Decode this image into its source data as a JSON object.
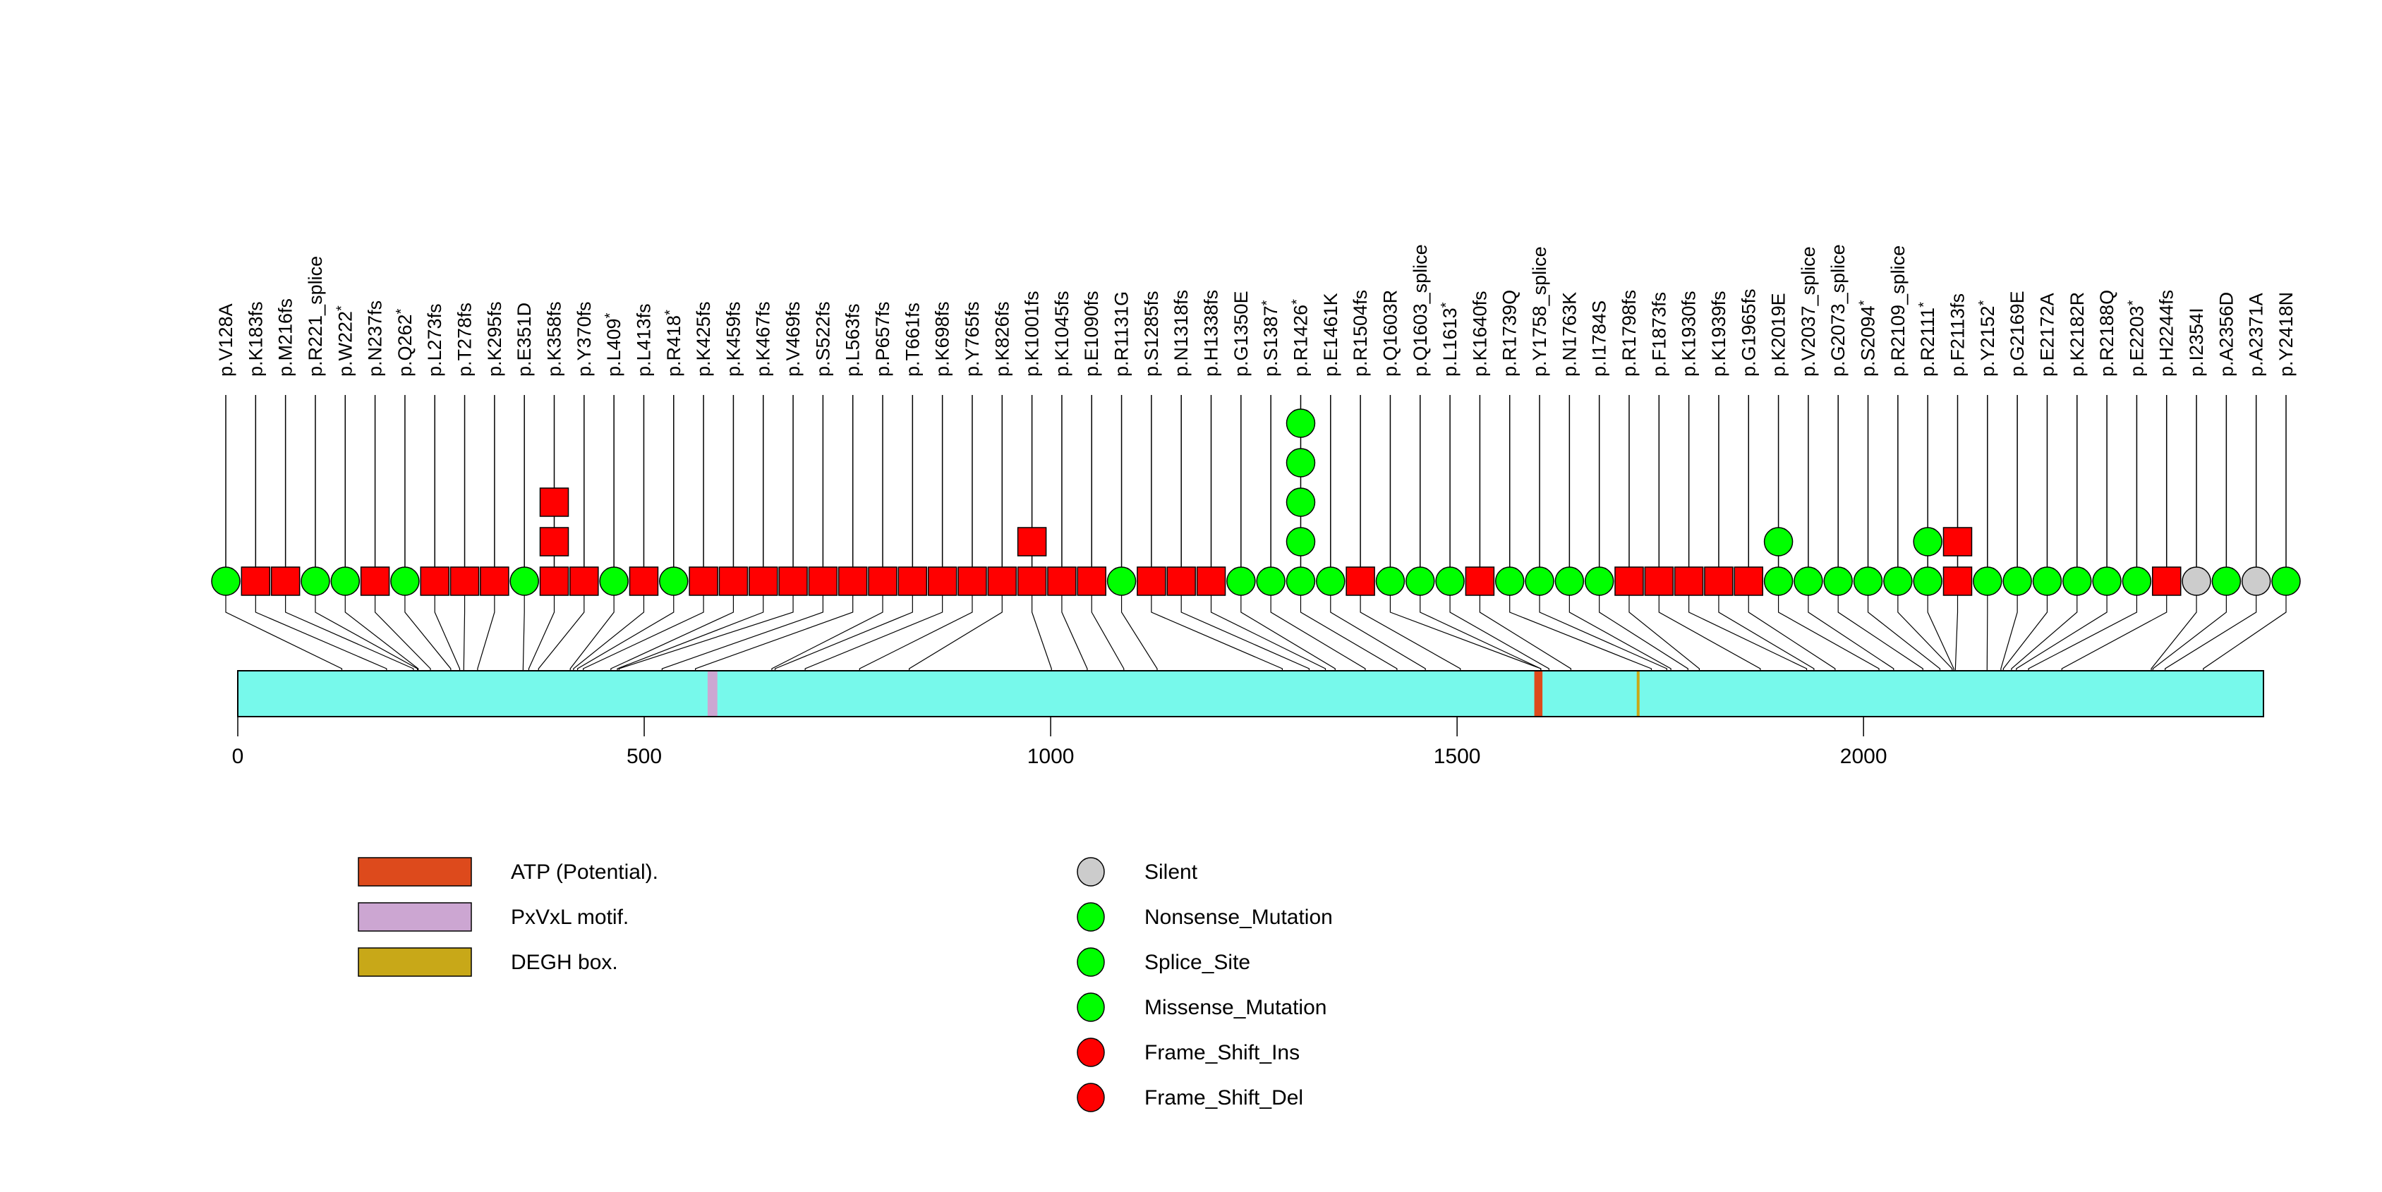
{
  "chart_data": {
    "type": "lollipop",
    "title": "",
    "xlabel": "",
    "ylabel": "",
    "protein_length": 2492,
    "x_range": [
      0,
      2492
    ],
    "x_ticks": [
      0,
      500,
      1000,
      1500,
      2000
    ],
    "colors": {
      "protein_bar": "#77F9EB",
      "Silent": "#CCCCCC",
      "Nonsense_Mutation": "#00FF00",
      "Splice_Site": "#00FF00",
      "Missense_Mutation": "#00FF00",
      "Frame_Shift_Ins": "#FF0000",
      "Frame_Shift_Del": "#FF0000",
      "ATP (Potential).": "#DD4A1C",
      "PxVxL motif.": "#CCA6D2",
      "DEGH box.": "#C8A818"
    },
    "domains": [
      {
        "name": "PxVxL motif.",
        "start": 578,
        "end": 590
      },
      {
        "name": "ATP (Potential).",
        "start": 1595,
        "end": 1605
      },
      {
        "name": "DEGH box.",
        "start": 1721,
        "end": 1724
      }
    ],
    "domain_legend": [
      {
        "label": "ATP (Potential).",
        "color": "#DD4A1C"
      },
      {
        "label": "PxVxL motif.",
        "color": "#CCA6D2"
      },
      {
        "label": "DEGH box.",
        "color": "#C8A818"
      }
    ],
    "mutation_legend": [
      {
        "label": "Silent",
        "color": "#CCCCCC"
      },
      {
        "label": "Nonsense_Mutation",
        "color": "#00FF00"
      },
      {
        "label": "Splice_Site",
        "color": "#00FF00"
      },
      {
        "label": "Missense_Mutation",
        "color": "#00FF00"
      },
      {
        "label": "Frame_Shift_Ins",
        "color": "#FF0000"
      },
      {
        "label": "Frame_Shift_Del",
        "color": "#FF0000"
      }
    ],
    "mutations": [
      {
        "label": "p.V128A",
        "pos": 128,
        "class": "point",
        "count": 1
      },
      {
        "label": "p.K183fs",
        "pos": 183,
        "class": "fs",
        "count": 1
      },
      {
        "label": "p.M216fs",
        "pos": 216,
        "class": "fs",
        "count": 1
      },
      {
        "label": "p.R221_splice",
        "pos": 221,
        "class": "point",
        "count": 1
      },
      {
        "label": "p.W222*",
        "pos": 222,
        "class": "point",
        "count": 1
      },
      {
        "label": "p.N237fs",
        "pos": 237,
        "class": "fs",
        "count": 1
      },
      {
        "label": "p.Q262*",
        "pos": 262,
        "class": "point",
        "count": 1
      },
      {
        "label": "p.L273fs",
        "pos": 273,
        "class": "fs",
        "count": 1
      },
      {
        "label": "p.T278fs",
        "pos": 278,
        "class": "fs",
        "count": 1
      },
      {
        "label": "p.K295fs",
        "pos": 295,
        "class": "fs",
        "count": 1
      },
      {
        "label": "p.E351D",
        "pos": 351,
        "class": "point",
        "count": 1
      },
      {
        "label": "p.K358fs",
        "pos": 358,
        "class": "fs",
        "count": 3
      },
      {
        "label": "p.Y370fs",
        "pos": 370,
        "class": "fs",
        "count": 1
      },
      {
        "label": "p.L409*",
        "pos": 409,
        "class": "point",
        "count": 1
      },
      {
        "label": "p.L413fs",
        "pos": 413,
        "class": "fs",
        "count": 1
      },
      {
        "label": "p.R418*",
        "pos": 418,
        "class": "point",
        "count": 1
      },
      {
        "label": "p.K425fs",
        "pos": 425,
        "class": "fs",
        "count": 1
      },
      {
        "label": "p.K459fs",
        "pos": 459,
        "class": "fs",
        "count": 1
      },
      {
        "label": "p.K467fs",
        "pos": 467,
        "class": "fs",
        "count": 1
      },
      {
        "label": "p.V469fs",
        "pos": 469,
        "class": "fs",
        "count": 1
      },
      {
        "label": "p.S522fs",
        "pos": 522,
        "class": "fs",
        "count": 1
      },
      {
        "label": "p.L563fs",
        "pos": 563,
        "class": "fs",
        "count": 1
      },
      {
        "label": "p.P657fs",
        "pos": 657,
        "class": "fs",
        "count": 1
      },
      {
        "label": "p.T661fs",
        "pos": 661,
        "class": "fs",
        "count": 1
      },
      {
        "label": "p.K698fs",
        "pos": 698,
        "class": "fs",
        "count": 1
      },
      {
        "label": "p.Y765fs",
        "pos": 765,
        "class": "fs",
        "count": 1
      },
      {
        "label": "p.K826fs",
        "pos": 826,
        "class": "fs",
        "count": 1
      },
      {
        "label": "p.K1001fs",
        "pos": 1001,
        "class": "fs",
        "count": 2
      },
      {
        "label": "p.K1045fs",
        "pos": 1045,
        "class": "fs",
        "count": 1
      },
      {
        "label": "p.E1090fs",
        "pos": 1090,
        "class": "fs",
        "count": 1
      },
      {
        "label": "p.R1131G",
        "pos": 1131,
        "class": "point",
        "count": 1
      },
      {
        "label": "p.S1285fs",
        "pos": 1285,
        "class": "fs",
        "count": 1
      },
      {
        "label": "p.N1318fs",
        "pos": 1318,
        "class": "fs",
        "count": 1
      },
      {
        "label": "p.H1338fs",
        "pos": 1338,
        "class": "fs",
        "count": 1
      },
      {
        "label": "p.G1350E",
        "pos": 1350,
        "class": "point",
        "count": 1
      },
      {
        "label": "p.S1387*",
        "pos": 1387,
        "class": "point",
        "count": 1
      },
      {
        "label": "p.R1426*",
        "pos": 1426,
        "class": "point",
        "count": 5
      },
      {
        "label": "p.E1461K",
        "pos": 1461,
        "class": "point",
        "count": 1
      },
      {
        "label": "p.R1504fs",
        "pos": 1504,
        "class": "fs",
        "count": 1
      },
      {
        "label": "p.Q1603R",
        "pos": 1603,
        "class": "point",
        "count": 1
      },
      {
        "label": "p.Q1603_splice",
        "pos": 1603,
        "class": "point",
        "count": 1
      },
      {
        "label": "p.L1613*",
        "pos": 1613,
        "class": "point",
        "count": 1
      },
      {
        "label": "p.K1640fs",
        "pos": 1640,
        "class": "fs",
        "count": 1
      },
      {
        "label": "p.R1739Q",
        "pos": 1739,
        "class": "point",
        "count": 1
      },
      {
        "label": "p.Y1758_splice",
        "pos": 1758,
        "class": "point",
        "count": 1
      },
      {
        "label": "p.N1763K",
        "pos": 1763,
        "class": "point",
        "count": 1
      },
      {
        "label": "p.I1784S",
        "pos": 1784,
        "class": "point",
        "count": 1
      },
      {
        "label": "p.R1798fs",
        "pos": 1798,
        "class": "fs",
        "count": 1
      },
      {
        "label": "p.F1873fs",
        "pos": 1873,
        "class": "fs",
        "count": 1
      },
      {
        "label": "p.K1930fs",
        "pos": 1930,
        "class": "fs",
        "count": 1
      },
      {
        "label": "p.K1939fs",
        "pos": 1939,
        "class": "fs",
        "count": 1
      },
      {
        "label": "p.G1965fs",
        "pos": 1965,
        "class": "fs",
        "count": 1
      },
      {
        "label": "p.K2019E",
        "pos": 2019,
        "class": "point",
        "count": 2
      },
      {
        "label": "p.V2037_splice",
        "pos": 2037,
        "class": "point",
        "count": 1
      },
      {
        "label": "p.G2073_splice",
        "pos": 2073,
        "class": "point",
        "count": 1
      },
      {
        "label": "p.S2094*",
        "pos": 2094,
        "class": "point",
        "count": 1
      },
      {
        "label": "p.R2109_splice",
        "pos": 2109,
        "class": "point",
        "count": 1
      },
      {
        "label": "p.R2111*",
        "pos": 2111,
        "class": "point",
        "count": 2
      },
      {
        "label": "p.F2113fs",
        "pos": 2113,
        "class": "fs",
        "count": 2
      },
      {
        "label": "p.Y2152*",
        "pos": 2152,
        "class": "point",
        "count": 1
      },
      {
        "label": "p.G2169E",
        "pos": 2169,
        "class": "point",
        "count": 1
      },
      {
        "label": "p.E2172A",
        "pos": 2172,
        "class": "point",
        "count": 1
      },
      {
        "label": "p.K2182R",
        "pos": 2182,
        "class": "point",
        "count": 1
      },
      {
        "label": "p.R2188Q",
        "pos": 2188,
        "class": "point",
        "count": 1
      },
      {
        "label": "p.E2203*",
        "pos": 2203,
        "class": "point",
        "count": 1
      },
      {
        "label": "p.H2244fs",
        "pos": 2244,
        "class": "fs",
        "count": 1
      },
      {
        "label": "p.I2354I",
        "pos": 2354,
        "class": "silent",
        "count": 1
      },
      {
        "label": "p.A2356D",
        "pos": 2356,
        "class": "point",
        "count": 1
      },
      {
        "label": "p.A2371A",
        "pos": 2371,
        "class": "silent",
        "count": 1
      },
      {
        "label": "p.Y2418N",
        "pos": 2418,
        "class": "point",
        "count": 1
      }
    ]
  }
}
